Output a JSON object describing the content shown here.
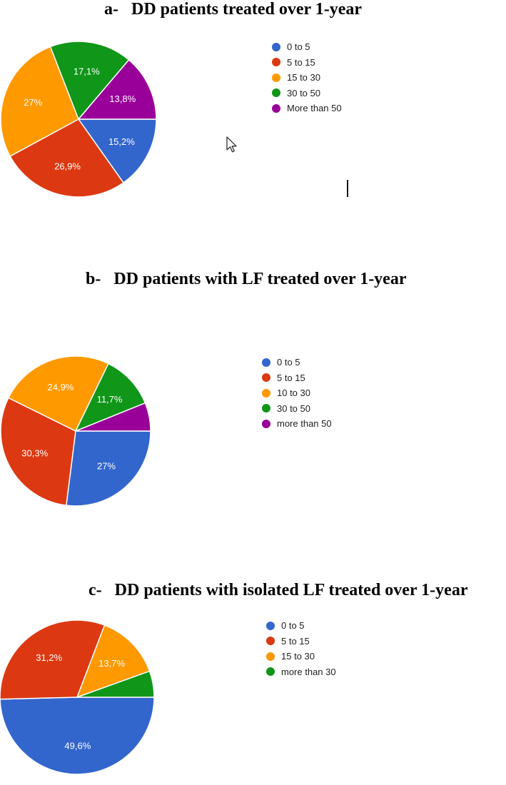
{
  "colors": {
    "blue": "#3366CC",
    "red": "#DC3912",
    "orange": "#FF9900",
    "green": "#109618",
    "purple": "#990099"
  },
  "icons": {
    "cursor": "mouse-pointer-arrow-icon",
    "caret": "text-caret-icon"
  },
  "chart_data": [
    {
      "type": "pie",
      "panel": "a-",
      "title": "DD patients treated over 1-year",
      "legend_position": "right",
      "slices": [
        {
          "label": "0 to 5",
          "value": 15.2,
          "text": "15,2%",
          "color": "#3366CC"
        },
        {
          "label": "5 to 15",
          "value": 26.9,
          "text": "26,9%",
          "color": "#DC3912"
        },
        {
          "label": "15 to 30",
          "value": 27.0,
          "text": "27%",
          "color": "#FF9900"
        },
        {
          "label": "30 to 50",
          "value": 17.1,
          "text": "17,1%",
          "color": "#109618"
        },
        {
          "label": "More than 50",
          "value": 13.8,
          "text": "13,8%",
          "color": "#990099"
        }
      ]
    },
    {
      "type": "pie",
      "panel": "b-",
      "title": "DD patients with LF treated over 1-year",
      "legend_position": "right",
      "slices": [
        {
          "label": "0 to 5",
          "value": 27.0,
          "text": "27%",
          "color": "#3366CC"
        },
        {
          "label": "5 to 15",
          "value": 30.3,
          "text": "30,3%",
          "color": "#DC3912"
        },
        {
          "label": "10 to 30",
          "value": 24.9,
          "text": "24,9%",
          "color": "#FF9900"
        },
        {
          "label": "30 to 50",
          "value": 11.7,
          "text": "11,7%",
          "color": "#109618"
        },
        {
          "label": "more than 50",
          "value": 6.1,
          "text": "",
          "color": "#990099"
        }
      ]
    },
    {
      "type": "pie",
      "panel": "c-",
      "title": "DD patients with isolated LF treated over 1-year",
      "legend_position": "right",
      "slices": [
        {
          "label": "0 to 5",
          "value": 49.6,
          "text": "49,6%",
          "color": "#3366CC"
        },
        {
          "label": "5 to 15",
          "value": 31.2,
          "text": "31,2%",
          "color": "#DC3912"
        },
        {
          "label": "15 to 30",
          "value": 13.7,
          "text": "13,7%",
          "color": "#FF9900"
        },
        {
          "label": "more than 30",
          "value": 5.5,
          "text": "",
          "color": "#109618"
        }
      ]
    }
  ]
}
